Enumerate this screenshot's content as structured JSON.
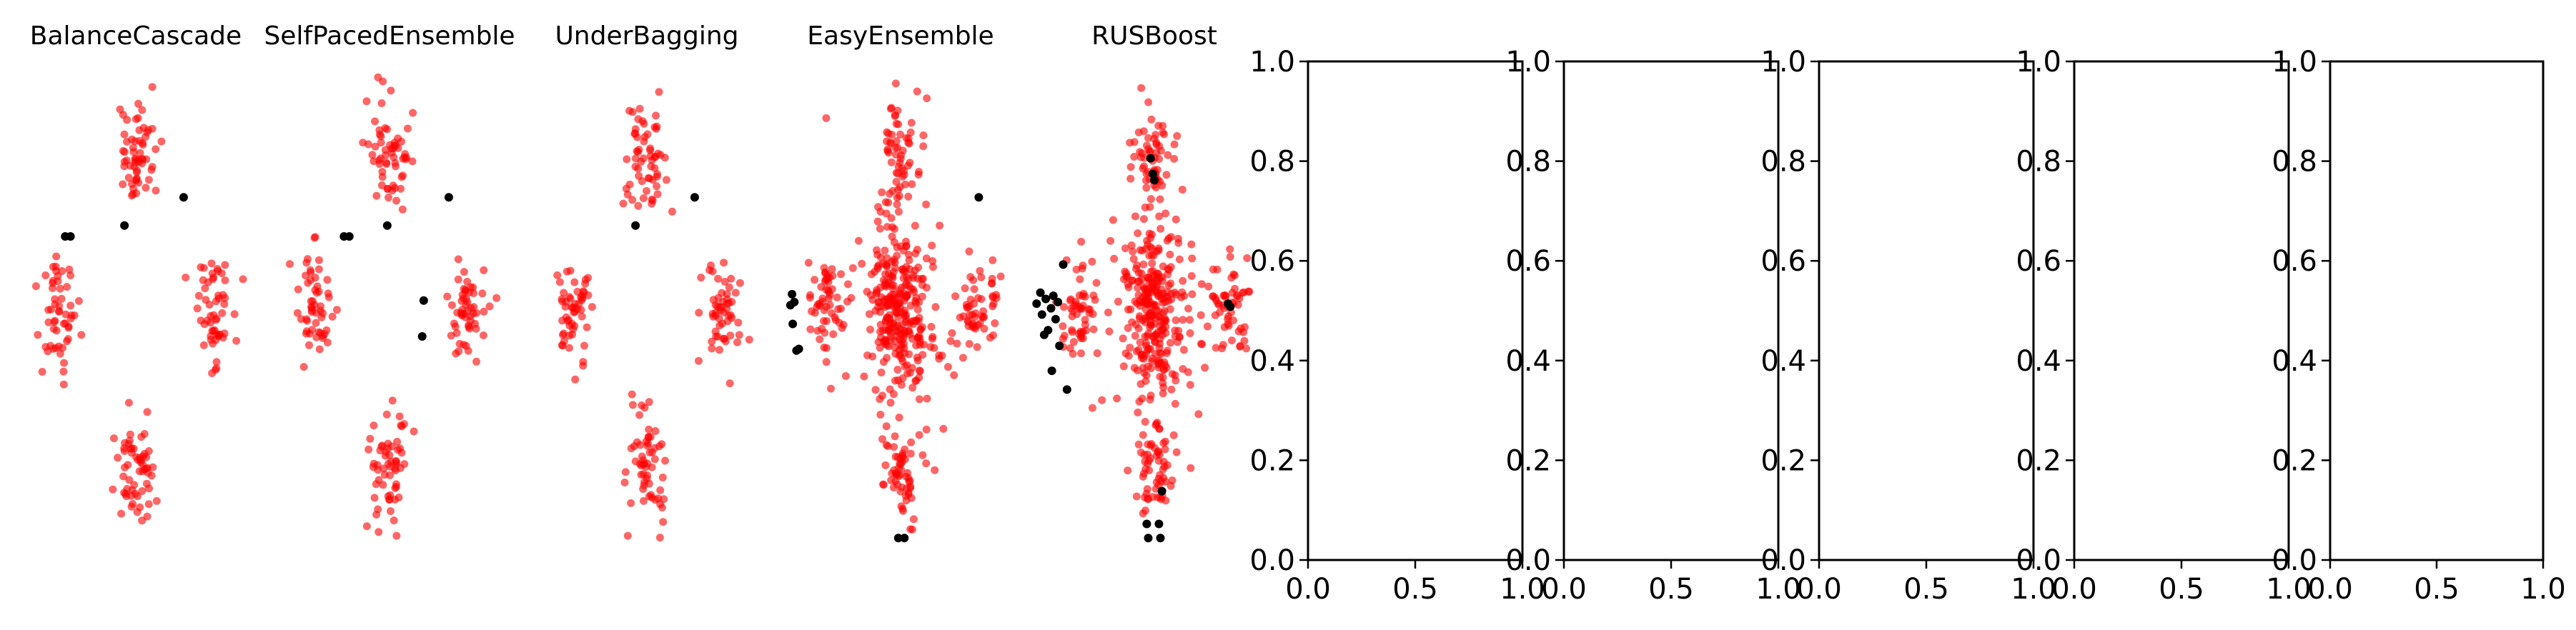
{
  "figure": {
    "background": "#ffffff",
    "minority_color": "#ff0000",
    "majority_color": "#000000"
  },
  "chart_data": [
    {
      "type": "scatter",
      "title": "BalanceCascade",
      "axes_visible": false,
      "xlim": [
        -1.6,
        1.6
      ],
      "ylim": [
        -1.6,
        1.6
      ],
      "clusters": [
        {
          "color": "#ff0000",
          "center": [
            0,
            1.0
          ],
          "spread": [
            0.14,
            0.18
          ],
          "count": 60
        },
        {
          "color": "#ff0000",
          "center": [
            -1.0,
            0
          ],
          "spread": [
            0.12,
            0.18
          ],
          "count": 55
        },
        {
          "color": "#ff0000",
          "center": [
            1.0,
            0
          ],
          "spread": [
            0.14,
            0.16
          ],
          "count": 55
        },
        {
          "color": "#ff0000",
          "center": [
            0,
            -1.0
          ],
          "spread": [
            0.14,
            0.18
          ],
          "count": 60
        }
      ],
      "points": [
        {
          "x": -0.93,
          "y": 0.48,
          "color": "#000000"
        },
        {
          "x": -0.86,
          "y": 0.48,
          "color": "#000000"
        },
        {
          "x": -0.15,
          "y": 0.55,
          "color": "#000000"
        },
        {
          "x": 0.63,
          "y": 0.73,
          "color": "#000000"
        }
      ]
    },
    {
      "type": "scatter",
      "title": "SelfPacedEnsemble",
      "axes_visible": false,
      "xlim": [
        -1.6,
        1.6
      ],
      "ylim": [
        -1.6,
        1.6
      ],
      "clusters": [
        {
          "color": "#ff0000",
          "center": [
            0,
            1.0
          ],
          "spread": [
            0.14,
            0.18
          ],
          "count": 60
        },
        {
          "color": "#ff0000",
          "center": [
            -1.0,
            0
          ],
          "spread": [
            0.12,
            0.18
          ],
          "count": 55
        },
        {
          "color": "#ff0000",
          "center": [
            1.0,
            0
          ],
          "spread": [
            0.14,
            0.16
          ],
          "count": 55
        },
        {
          "color": "#ff0000",
          "center": [
            0,
            -1.0
          ],
          "spread": [
            0.14,
            0.18
          ],
          "count": 60
        }
      ],
      "points": [
        {
          "x": -0.6,
          "y": 0.48,
          "color": "#000000"
        },
        {
          "x": -0.53,
          "y": 0.48,
          "color": "#000000"
        },
        {
          "x": -0.03,
          "y": 0.55,
          "color": "#000000"
        },
        {
          "x": 0.78,
          "y": 0.73,
          "color": "#000000"
        },
        {
          "x": 0.45,
          "y": 0.07,
          "color": "#000000"
        },
        {
          "x": 0.43,
          "y": -0.16,
          "color": "#000000"
        }
      ]
    },
    {
      "type": "scatter",
      "title": "UnderBagging",
      "axes_visible": false,
      "xlim": [
        -1.6,
        1.6
      ],
      "ylim": [
        -1.6,
        1.6
      ],
      "clusters": [
        {
          "color": "#ff0000",
          "center": [
            0,
            1.0
          ],
          "spread": [
            0.14,
            0.18
          ],
          "count": 60
        },
        {
          "color": "#ff0000",
          "center": [
            -1.0,
            0
          ],
          "spread": [
            0.12,
            0.18
          ],
          "count": 55
        },
        {
          "color": "#ff0000",
          "center": [
            1.0,
            0
          ],
          "spread": [
            0.14,
            0.16
          ],
          "count": 55
        },
        {
          "color": "#ff0000",
          "center": [
            0,
            -1.0
          ],
          "spread": [
            0.14,
            0.18
          ],
          "count": 60
        }
      ],
      "points": [
        {
          "x": -0.15,
          "y": 0.55,
          "color": "#000000"
        },
        {
          "x": 0.63,
          "y": 0.73,
          "color": "#000000"
        }
      ]
    },
    {
      "type": "scatter",
      "title": "EasyEnsemble",
      "axes_visible": false,
      "xlim": [
        -1.6,
        1.6
      ],
      "ylim": [
        -1.6,
        1.6
      ],
      "clusters": [
        {
          "color": "#ff0000",
          "center": [
            0,
            1.0
          ],
          "spread": [
            0.14,
            0.18
          ],
          "count": 60
        },
        {
          "color": "#ff0000",
          "center": [
            -1.0,
            0
          ],
          "spread": [
            0.12,
            0.18
          ],
          "count": 55
        },
        {
          "color": "#ff0000",
          "center": [
            1.0,
            0
          ],
          "spread": [
            0.14,
            0.16
          ],
          "count": 55
        },
        {
          "color": "#ff0000",
          "center": [
            0,
            -1.0
          ],
          "spread": [
            0.14,
            0.18
          ],
          "count": 60
        },
        {
          "color": "#ff0000",
          "center": [
            0,
            0
          ],
          "spread": [
            0.2,
            0.26
          ],
          "count": 260
        },
        {
          "color": "#ff0000",
          "center": [
            0,
            0
          ],
          "spread": [
            0.6,
            0.6
          ],
          "count": 40
        }
      ],
      "points": [
        {
          "x": -1.43,
          "y": 0.11,
          "color": "#000000"
        },
        {
          "x": -1.45,
          "y": 0.04,
          "color": "#000000"
        },
        {
          "x": -1.4,
          "y": 0.06,
          "color": "#000000"
        },
        {
          "x": -1.42,
          "y": -0.08,
          "color": "#000000"
        },
        {
          "x": -1.37,
          "y": -0.25,
          "color": "#000000"
        },
        {
          "x": -1.34,
          "y": -0.24,
          "color": "#000000"
        },
        {
          "x": 1.03,
          "y": 0.73,
          "color": "#000000"
        },
        {
          "x": -0.03,
          "y": -1.45,
          "color": "#000000"
        },
        {
          "x": 0.05,
          "y": -1.45,
          "color": "#000000"
        }
      ]
    },
    {
      "type": "scatter",
      "title": "RUSBoost",
      "axes_visible": false,
      "xlim": [
        -1.6,
        1.6
      ],
      "ylim": [
        -1.6,
        1.6
      ],
      "clusters": [
        {
          "color": "#ff0000",
          "center": [
            0,
            1.0
          ],
          "spread": [
            0.14,
            0.18
          ],
          "count": 60
        },
        {
          "color": "#ff0000",
          "center": [
            -1.0,
            0
          ],
          "spread": [
            0.12,
            0.18
          ],
          "count": 55
        },
        {
          "color": "#ff0000",
          "center": [
            1.0,
            0
          ],
          "spread": [
            0.14,
            0.16
          ],
          "count": 55
        },
        {
          "color": "#ff0000",
          "center": [
            0,
            -1.0
          ],
          "spread": [
            0.14,
            0.18
          ],
          "count": 60
        },
        {
          "color": "#ff0000",
          "center": [
            0,
            0
          ],
          "spread": [
            0.2,
            0.26
          ],
          "count": 260
        },
        {
          "color": "#ff0000",
          "center": [
            0,
            0
          ],
          "spread": [
            0.6,
            0.6
          ],
          "count": 40
        }
      ],
      "points": [
        {
          "x": -0.05,
          "y": 0.98,
          "color": "#000000"
        },
        {
          "x": -0.02,
          "y": 0.88,
          "color": "#000000"
        },
        {
          "x": 0.0,
          "y": 0.84,
          "color": "#000000"
        },
        {
          "x": -1.55,
          "y": 0.05,
          "color": "#000000"
        },
        {
          "x": -1.5,
          "y": 0.12,
          "color": "#000000"
        },
        {
          "x": -1.48,
          "y": -0.02,
          "color": "#000000"
        },
        {
          "x": -1.43,
          "y": 0.08,
          "color": "#000000"
        },
        {
          "x": -1.4,
          "y": -0.12,
          "color": "#000000"
        },
        {
          "x": -1.36,
          "y": 0.02,
          "color": "#000000"
        },
        {
          "x": -1.33,
          "y": 0.1,
          "color": "#000000"
        },
        {
          "x": -1.3,
          "y": -0.05,
          "color": "#000000"
        },
        {
          "x": -1.45,
          "y": -0.15,
          "color": "#000000"
        },
        {
          "x": -1.27,
          "y": 0.06,
          "color": "#000000"
        },
        {
          "x": -1.2,
          "y": 0.3,
          "color": "#000000"
        },
        {
          "x": -1.35,
          "y": -0.38,
          "color": "#000000"
        },
        {
          "x": -1.15,
          "y": -0.5,
          "color": "#000000"
        },
        {
          "x": -1.25,
          "y": -0.22,
          "color": "#000000"
        },
        {
          "x": 0.97,
          "y": 0.05,
          "color": "#000000"
        },
        {
          "x": 1.0,
          "y": 0.03,
          "color": "#000000"
        },
        {
          "x": 0.1,
          "y": -1.15,
          "color": "#000000"
        },
        {
          "x": -0.1,
          "y": -1.36,
          "color": "#000000"
        },
        {
          "x": 0.06,
          "y": -1.36,
          "color": "#000000"
        },
        {
          "x": -0.08,
          "y": -1.45,
          "color": "#000000"
        },
        {
          "x": 0.08,
          "y": -1.45,
          "color": "#000000"
        }
      ]
    },
    {
      "type": "scatter",
      "title": "",
      "axes_visible": true,
      "xlim": [
        0.0,
        1.0
      ],
      "ylim": [
        0.0,
        1.0
      ],
      "x_ticks": [
        "0.0",
        "0.5",
        "1.0"
      ],
      "y_ticks": [
        "0.0",
        "0.2",
        "0.4",
        "0.6",
        "0.8",
        "1.0"
      ],
      "points": []
    },
    {
      "type": "scatter",
      "title": "",
      "axes_visible": true,
      "xlim": [
        0.0,
        1.0
      ],
      "ylim": [
        0.0,
        1.0
      ],
      "x_ticks": [
        "0.0",
        "0.5",
        "1.0"
      ],
      "y_ticks": [
        "0.0",
        "0.2",
        "0.4",
        "0.6",
        "0.8",
        "1.0"
      ],
      "points": []
    },
    {
      "type": "scatter",
      "title": "",
      "axes_visible": true,
      "xlim": [
        0.0,
        1.0
      ],
      "ylim": [
        0.0,
        1.0
      ],
      "x_ticks": [
        "0.0",
        "0.5",
        "1.0"
      ],
      "y_ticks": [
        "0.0",
        "0.2",
        "0.4",
        "0.6",
        "0.8",
        "1.0"
      ],
      "points": []
    },
    {
      "type": "scatter",
      "title": "",
      "axes_visible": true,
      "xlim": [
        0.0,
        1.0
      ],
      "ylim": [
        0.0,
        1.0
      ],
      "x_ticks": [
        "0.0",
        "0.5",
        "1.0"
      ],
      "y_ticks": [
        "0.0",
        "0.2",
        "0.4",
        "0.6",
        "0.8",
        "1.0"
      ],
      "points": []
    },
    {
      "type": "scatter",
      "title": "",
      "axes_visible": true,
      "xlim": [
        0.0,
        1.0
      ],
      "ylim": [
        0.0,
        1.0
      ],
      "x_ticks": [
        "0.0",
        "0.5",
        "1.0"
      ],
      "y_ticks": [
        "0.0",
        "0.2",
        "0.4",
        "0.6",
        "0.8",
        "1.0"
      ],
      "points": []
    }
  ]
}
